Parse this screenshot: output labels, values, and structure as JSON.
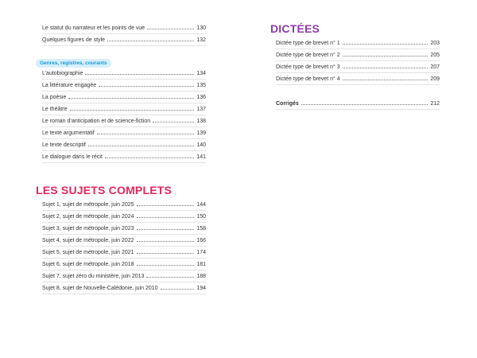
{
  "left_top": [
    {
      "label": "Le statut du narrateur et les points de vue",
      "page": "130"
    },
    {
      "label": "Quelques figures de style",
      "page": "132"
    }
  ],
  "genres": {
    "title": "Genres, registres, courants",
    "items": [
      {
        "label": "L’autobiographie",
        "page": "134"
      },
      {
        "label": "La littérature engagée",
        "page": "135"
      },
      {
        "label": "La poésie",
        "page": "136"
      },
      {
        "label": "Le théâtre",
        "page": "137"
      },
      {
        "label": "Le roman d’anticipation et de science-fiction",
        "page": "138"
      },
      {
        "label": "Le texte argumentatif",
        "page": "139"
      },
      {
        "label": "Le texte descriptif",
        "page": "140"
      },
      {
        "label": "Le dialogue dans le récit",
        "page": "141"
      }
    ]
  },
  "sujets": {
    "title": "LES SUJETS COMPLETS",
    "color": "#e8265e",
    "items": [
      {
        "label": "Sujet 1, sujet de métropole, juin 2025",
        "page": "144"
      },
      {
        "label": "Sujet 2, sujet de métropole, juin 2024",
        "page": "150"
      },
      {
        "label": "Sujet 3, sujet de métropole, juin 2023",
        "page": "158"
      },
      {
        "label": "Sujet 4, sujet de métropole, juin 2022",
        "page": "166"
      },
      {
        "label": "Sujet 5, sujet de métropole, juin 2021",
        "page": "174"
      },
      {
        "label": "Sujet 6, sujet de métropole, juin 2018",
        "page": "181"
      },
      {
        "label": "Sujet 7, sujet zéro du ministère, juin 2013",
        "page": "188"
      },
      {
        "label": "Sujet 8, sujet de Nouvelle-Calédonie, juin 2010",
        "page": "194"
      }
    ]
  },
  "dictees": {
    "title": "DICTÉES",
    "color": "#8e3aa8",
    "items": [
      {
        "label": "Dictée type de brevet n° 1",
        "page": "203"
      },
      {
        "label": "Dictée type de brevet n° 2",
        "page": "205"
      },
      {
        "label": "Dictée type de brevet n° 3",
        "page": "207"
      },
      {
        "label": "Dictée type de brevet n° 4",
        "page": "209"
      }
    ],
    "corriges": {
      "label": "Corrigés",
      "page": "212"
    }
  }
}
